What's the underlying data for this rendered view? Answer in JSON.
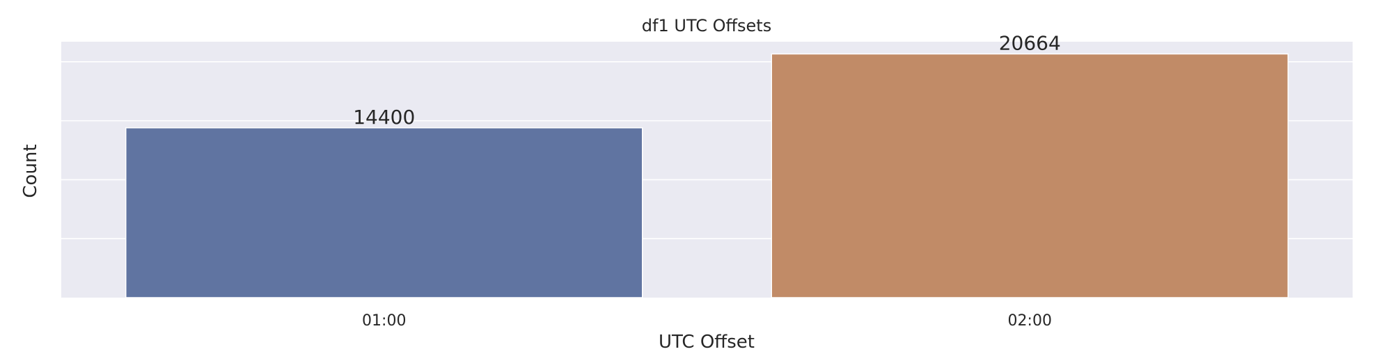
{
  "chart_data": {
    "type": "bar",
    "title": "df1 UTC Offsets",
    "xlabel": "UTC Offset",
    "ylabel": "Count",
    "categories": [
      "01:00",
      "02:00"
    ],
    "values": [
      14400,
      20664
    ],
    "data_labels": [
      "14400",
      "20664"
    ],
    "colors": [
      "#6074a1",
      "#c18b67"
    ],
    "ylim": [
      0,
      21700
    ],
    "y_gridlines": [
      5000,
      10000,
      15000,
      20000
    ],
    "y_tick_labels_shown": false,
    "grid": true,
    "background": "#eaeaf2",
    "legend": "none"
  }
}
